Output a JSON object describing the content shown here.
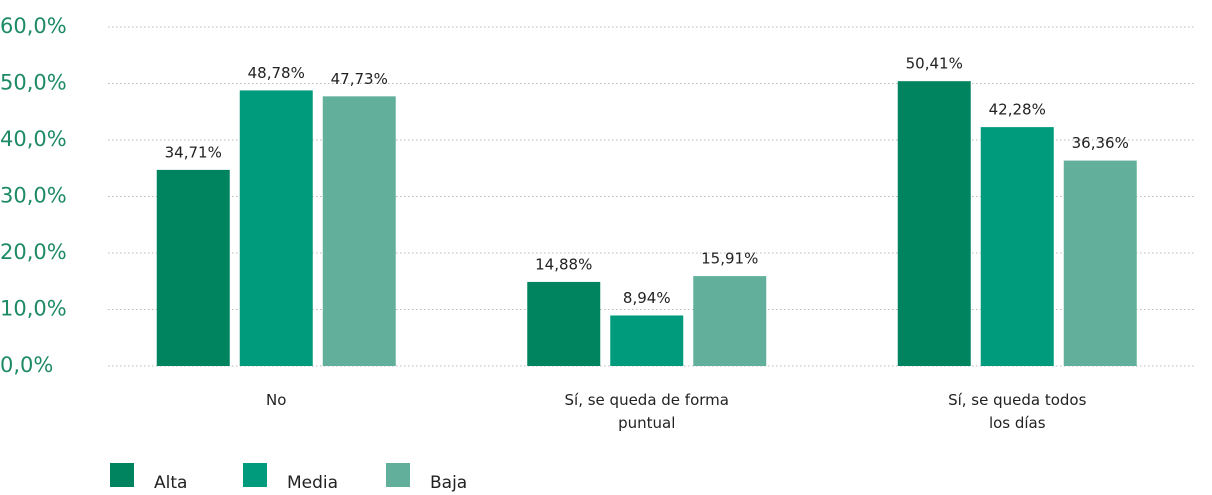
{
  "chart_data": {
    "type": "bar",
    "categories": [
      "No",
      "Sí, se queda de forma puntual",
      "Sí, se queda todos los días"
    ],
    "series": [
      {
        "name": "Alta",
        "color": "#00845f",
        "values": [
          34.71,
          14.88,
          50.41
        ],
        "value_labels": [
          "34,71%",
          "14,88%",
          "50,41%"
        ]
      },
      {
        "name": "Media",
        "color": "#009b7d",
        "values": [
          48.78,
          8.94,
          42.28
        ],
        "value_labels": [
          "48,78%",
          "8,94%",
          "42,28%"
        ]
      },
      {
        "name": "Baja",
        "color": "#62b09b",
        "values": [
          47.73,
          15.91,
          36.36
        ],
        "value_labels": [
          "47,73%",
          "15,91%",
          "36,36%"
        ]
      }
    ],
    "ylim": [
      0,
      60
    ],
    "yticks": [
      {
        "value": 0,
        "label": "0,0%"
      },
      {
        "value": 10,
        "label": "10,0%"
      },
      {
        "value": 20,
        "label": "20,0%"
      },
      {
        "value": 30,
        "label": "30,0%"
      },
      {
        "value": 40,
        "label": "40,0%"
      },
      {
        "value": 50,
        "label": "50,0%"
      },
      {
        "value": 60,
        "label": "60,0%"
      }
    ],
    "grid": true,
    "legend": "bottom-left"
  }
}
